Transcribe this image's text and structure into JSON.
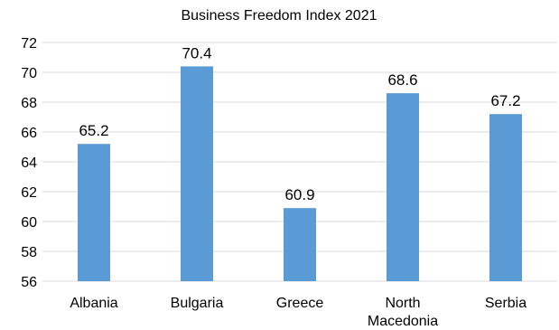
{
  "chart_data": {
    "type": "bar",
    "title": "Business Freedom Index 2021",
    "xlabel": "",
    "ylabel": "",
    "categories": [
      "Albania",
      "Bulgaria",
      "Greece",
      "North Macedonia",
      "Serbia"
    ],
    "category_lines": [
      [
        "Albania"
      ],
      [
        "Bulgaria"
      ],
      [
        "Greece"
      ],
      [
        "North",
        "Macedonia"
      ],
      [
        "Serbia"
      ]
    ],
    "values": [
      65.2,
      70.4,
      60.9,
      68.6,
      67.2
    ],
    "value_labels": [
      "65.2",
      "70.4",
      "60.9",
      "68.6",
      "67.2"
    ],
    "ylim": [
      56,
      72
    ],
    "yticks": [
      56,
      58,
      60,
      62,
      64,
      66,
      68,
      70,
      72
    ],
    "grid": true,
    "legend": "none",
    "bar_color": "#5b9bd5",
    "grid_color": "#d9d9d9"
  }
}
